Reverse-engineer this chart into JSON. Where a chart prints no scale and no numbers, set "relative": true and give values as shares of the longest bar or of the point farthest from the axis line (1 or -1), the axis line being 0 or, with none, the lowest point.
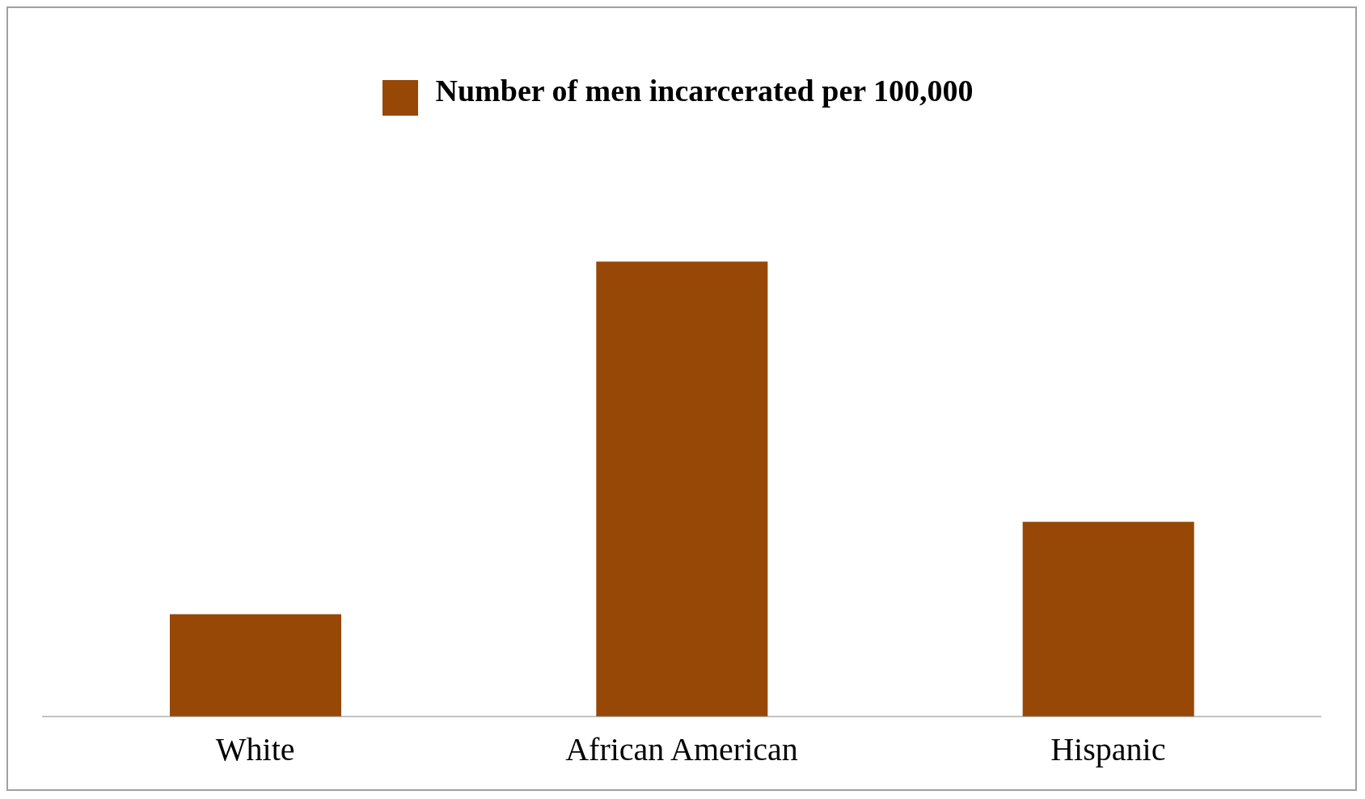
{
  "chart_data": {
    "type": "bar",
    "relative": true,
    "categories": [
      "White",
      "African American",
      "Hispanic"
    ],
    "series": [
      {
        "name": "Number of men incarcerated per 100,000",
        "color": "#974706",
        "values": [
          0.2246,
          1,
          0.428
        ]
      }
    ],
    "legend": "top",
    "grid": false
  }
}
